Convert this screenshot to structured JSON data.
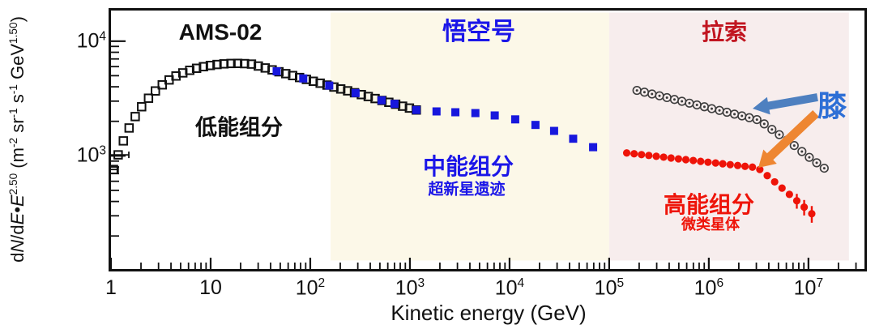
{
  "colors": {
    "frame": "#111111",
    "black_series": "#111111",
    "blue_series": "#1717dd",
    "gray_series": "#3c3c3c",
    "red_series": "#ee1409",
    "wukong_text": "#1b16e8",
    "lhaaso_text": "#c11520",
    "knee_text": "#2e6fd6",
    "blue_arrow": "#4e80c0",
    "orange_arrow": "#ee8632",
    "band_wukong": "#fcf8e8",
    "band_lhaaso": "#f7eded"
  },
  "labels": {
    "region_titles": {
      "ams": "AMS-02",
      "wukong": "悟空号",
      "lhaaso": "拉索"
    },
    "low": {
      "title": "低能组分"
    },
    "mid": {
      "title": "中能组分",
      "subtitle": "超新星遗迹"
    },
    "high": {
      "title": "高能组分",
      "subtitle": "微类星体"
    },
    "knee": "膝",
    "xlabel": "Kinetic energy (GeV)"
  },
  "chart_data": {
    "type": "scatter",
    "scale": "log-log",
    "xlabel": "Kinetic energy (GeV)",
    "ylabel": "dN/dE·E^2.50 (m^-2 sr^-1 s^-1 GeV^1.50)",
    "ylabel_parts": [
      {
        "text": "d"
      },
      {
        "text": "N",
        "italic": true
      },
      {
        "text": "/d"
      },
      {
        "text": "E",
        "italic": true
      },
      {
        "text": "•"
      },
      {
        "text": "E",
        "italic": true
      },
      {
        "text": "2.50",
        "sup": true
      },
      {
        "text": " (m"
      },
      {
        "text": "-2",
        "sup": true
      },
      {
        "text": " sr"
      },
      {
        "text": "-1",
        "sup": true
      },
      {
        "text": " s"
      },
      {
        "text": "-1",
        "sup": true
      },
      {
        "text": " GeV"
      },
      {
        "text": "1.50",
        "sup": true
      },
      {
        "text": ")"
      }
    ],
    "xlim": [
      1,
      36500000
    ],
    "ylim": [
      103,
      18500
    ],
    "grid": false,
    "legend": "none",
    "x_ticks": [
      {
        "v": 1,
        "t": "1"
      },
      {
        "v": 10,
        "t": "10"
      },
      {
        "v": 100,
        "t": "10",
        "s": "2"
      },
      {
        "v": 1000,
        "t": "10",
        "s": "3"
      },
      {
        "v": 10000,
        "t": "10",
        "s": "4"
      },
      {
        "v": 100000,
        "t": "10",
        "s": "5"
      },
      {
        "v": 1000000,
        "t": "10",
        "s": "6"
      },
      {
        "v": 10000000,
        "t": "10",
        "s": "7"
      }
    ],
    "y_ticks": [
      {
        "v": 1000,
        "t": "10",
        "s": "3"
      },
      {
        "v": 10000,
        "t": "10",
        "s": "4"
      }
    ],
    "bands": [
      {
        "name": "wukong-region",
        "from": 160,
        "to": 100000,
        "color": "#fcf8e8",
        "title": "悟空号"
      },
      {
        "name": "lhaaso-region",
        "from": 100000,
        "to": 25500000,
        "color": "#f7eded",
        "title": "拉索"
      }
    ],
    "series": [
      {
        "name": "AMS-02 低能组分 (open squares)",
        "marker": "open-square",
        "size": 9.5,
        "color": "#111111",
        "points": [
          {
            "e": 1.06,
            "f": 760,
            "xlo": 0.97,
            "xhi": 1.18
          },
          {
            "e": 1.18,
            "f": 1020,
            "xlo": 1.0,
            "xhi": 1.51
          },
          [
            1.33,
            1350
          ],
          [
            1.52,
            1750
          ],
          [
            1.75,
            2200
          ],
          [
            2.03,
            2680
          ],
          [
            2.38,
            3180
          ],
          [
            2.79,
            3680
          ],
          [
            3.27,
            4160
          ],
          [
            3.83,
            4590
          ],
          [
            4.49,
            4970
          ],
          [
            5.26,
            5290
          ],
          [
            6.17,
            5570
          ],
          [
            7.23,
            5800
          ],
          [
            8.47,
            5990
          ],
          [
            9.93,
            6140
          ],
          [
            11.6,
            6260
          ],
          [
            13.6,
            6340
          ],
          [
            16.0,
            6390
          ],
          [
            18.7,
            6400
          ],
          [
            21.9,
            6370
          ],
          [
            25.7,
            6310
          ],
          [
            30.1,
            6070
          ],
          [
            35.3,
            5840
          ],
          [
            41.4,
            5620
          ],
          [
            48.5,
            5410
          ],
          [
            56.8,
            5210
          ],
          [
            66.6,
            5010
          ],
          [
            78.1,
            4820
          ],
          [
            91.5,
            4640
          ],
          [
            107.2,
            4470
          ],
          [
            125.7,
            4300
          ],
          [
            147.3,
            4140
          ],
          [
            172.6,
            3980
          ],
          [
            202.3,
            3830
          ],
          [
            237.1,
            3690
          ],
          [
            277.9,
            3550
          ],
          [
            325.7,
            3420
          ],
          [
            381.7,
            3290
          ],
          [
            447.4,
            3160
          ],
          [
            524.3,
            3040
          ],
          [
            614.5,
            2930
          ],
          [
            720.2,
            2820
          ],
          [
            844.1,
            2710
          ],
          [
            989.3,
            2610
          ],
          [
            1159.5,
            2510
          ]
        ]
      },
      {
        "name": "悟空号 中能组分 (filled blue squares)",
        "marker": "filled-square",
        "size": 10,
        "color": "#1717dd",
        "points": [
          [
            46,
            5460
          ],
          [
            85,
            4730
          ],
          [
            155,
            4100
          ],
          [
            285,
            3530
          ],
          [
            520,
            3050
          ],
          [
            700,
            2840
          ],
          [
            1160,
            2510
          ],
          [
            1850,
            2440
          ],
          [
            2860,
            2400
          ],
          [
            4540,
            2360
          ],
          [
            7100,
            2250
          ],
          [
            11400,
            2080
          ],
          [
            18200,
            1860
          ],
          [
            28000,
            1650
          ],
          [
            43500,
            1410
          ],
          [
            69000,
            1190
          ]
        ]
      },
      {
        "name": "拉索 circled-dot spectrum (knee)",
        "marker": "circled-dot",
        "size": 4.8,
        "color": "#3c3c3c",
        "points": [
          [
            190000,
            3720
          ],
          [
            226000,
            3590
          ],
          [
            269000,
            3460
          ],
          [
            320000,
            3340
          ],
          [
            380000,
            3220
          ],
          [
            452000,
            3100
          ],
          [
            537000,
            2990
          ],
          [
            639000,
            2880
          ],
          [
            760000,
            2780
          ],
          [
            903000,
            2680
          ],
          [
            1070000,
            2580
          ],
          [
            1280000,
            2490
          ],
          [
            1520000,
            2400
          ],
          [
            1810000,
            2310
          ],
          [
            2150000,
            2230
          ],
          [
            2550000,
            2150
          ],
          [
            3040000,
            2070
          ],
          [
            3600000,
            1900
          ],
          [
            4300000,
            1700
          ],
          [
            5100000,
            1530
          ],
          [
            6100000,
            1370
          ],
          [
            7200000,
            1230
          ],
          [
            8600000,
            1090
          ],
          [
            10200000,
            970
          ],
          [
            12100000,
            870
          ],
          [
            14400000,
            780
          ]
        ]
      },
      {
        "name": "拉索 高能组分 (filled red circles)",
        "marker": "filled-circle",
        "size": 4.6,
        "color": "#ee1409",
        "points": [
          [
            150000,
            1060
          ],
          [
            178000,
            1043
          ],
          [
            211000,
            1025
          ],
          [
            250000,
            1008
          ],
          [
            297000,
            991
          ],
          [
            352000,
            974
          ],
          [
            418000,
            957
          ],
          [
            496000,
            941
          ],
          [
            588000,
            926
          ],
          [
            698000,
            911
          ],
          [
            828000,
            895
          ],
          [
            982000,
            880
          ],
          [
            1170000,
            866
          ],
          [
            1380000,
            852
          ],
          [
            1640000,
            838
          ],
          [
            1950000,
            824
          ],
          [
            2310000,
            810
          ],
          [
            2740000,
            797
          ],
          [
            3250000,
            760
          ],
          [
            3860000,
            672
          ],
          [
            4580000,
            593
          ],
          [
            5430000,
            523
          ],
          [
            6440000,
            461
          ],
          {
            "e": 7640000,
            "f": 406,
            "ferr": 60
          },
          {
            "e": 9060000,
            "f": 357,
            "ferr": 55
          },
          {
            "e": 10800000,
            "f": 313,
            "ferr": 52
          }
        ]
      }
    ],
    "annotations": {
      "knee_label": "膝",
      "arrows": [
        {
          "name": "knee-arrow-blue",
          "from": [
            1009,
            120
          ],
          "to": [
            929,
            134
          ],
          "w": 5,
          "hl": 20,
          "hw": 11,
          "color": "#4e80c0"
        },
        {
          "name": "knee-arrow-orange",
          "from": [
            1007,
            140
          ],
          "to": [
            936,
            207
          ],
          "w": 5.5,
          "hl": 20,
          "hw": 12,
          "color": "#ee8632"
        }
      ]
    }
  }
}
